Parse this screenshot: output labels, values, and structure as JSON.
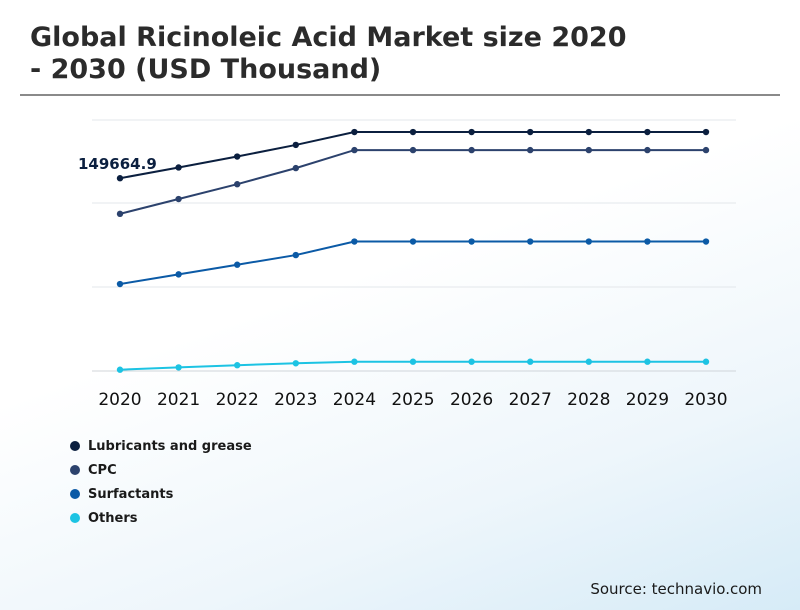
{
  "header": {
    "title_line1": "Global Ricinoleic Acid Market size 2020",
    "title_line2": "- 2030 (USD Thousand)"
  },
  "source": "Source: technavio.com",
  "chart_data": {
    "type": "line",
    "title": "Global Ricinoleic Acid Market size 2020 - 2030 (USD Thousand)",
    "x": [
      "2020",
      "2021",
      "2022",
      "2023",
      "2024",
      "2025",
      "2026",
      "2027",
      "2028",
      "2029",
      "2030"
    ],
    "ylim": [
      0,
      220000
    ],
    "grid": true,
    "legend_position": "bottom-left",
    "annotation": {
      "series": "Lubricants and grease",
      "x": "2020",
      "label": "149664.9"
    },
    "series": [
      {
        "name": "Lubricants and grease",
        "color": "#0b1f3f",
        "values": [
          149664.9,
          158000,
          166500,
          175500,
          185500,
          185500,
          185500,
          185500,
          185500,
          185500,
          185500
        ]
      },
      {
        "name": "CPC",
        "color": "#2c426d",
        "values": [
          122000,
          133500,
          145000,
          157500,
          171500,
          171500,
          171500,
          171500,
          171500,
          171500,
          171500
        ]
      },
      {
        "name": "Surfactants",
        "color": "#0b5aa6",
        "values": [
          67500,
          75000,
          82500,
          90000,
          100500,
          100500,
          100500,
          100500,
          100500,
          100500,
          100500
        ]
      },
      {
        "name": "Others",
        "color": "#1cc3e3",
        "values": [
          1000,
          2800,
          4500,
          6000,
          7200,
          7200,
          7200,
          7200,
          7200,
          7200,
          7200
        ]
      }
    ]
  }
}
